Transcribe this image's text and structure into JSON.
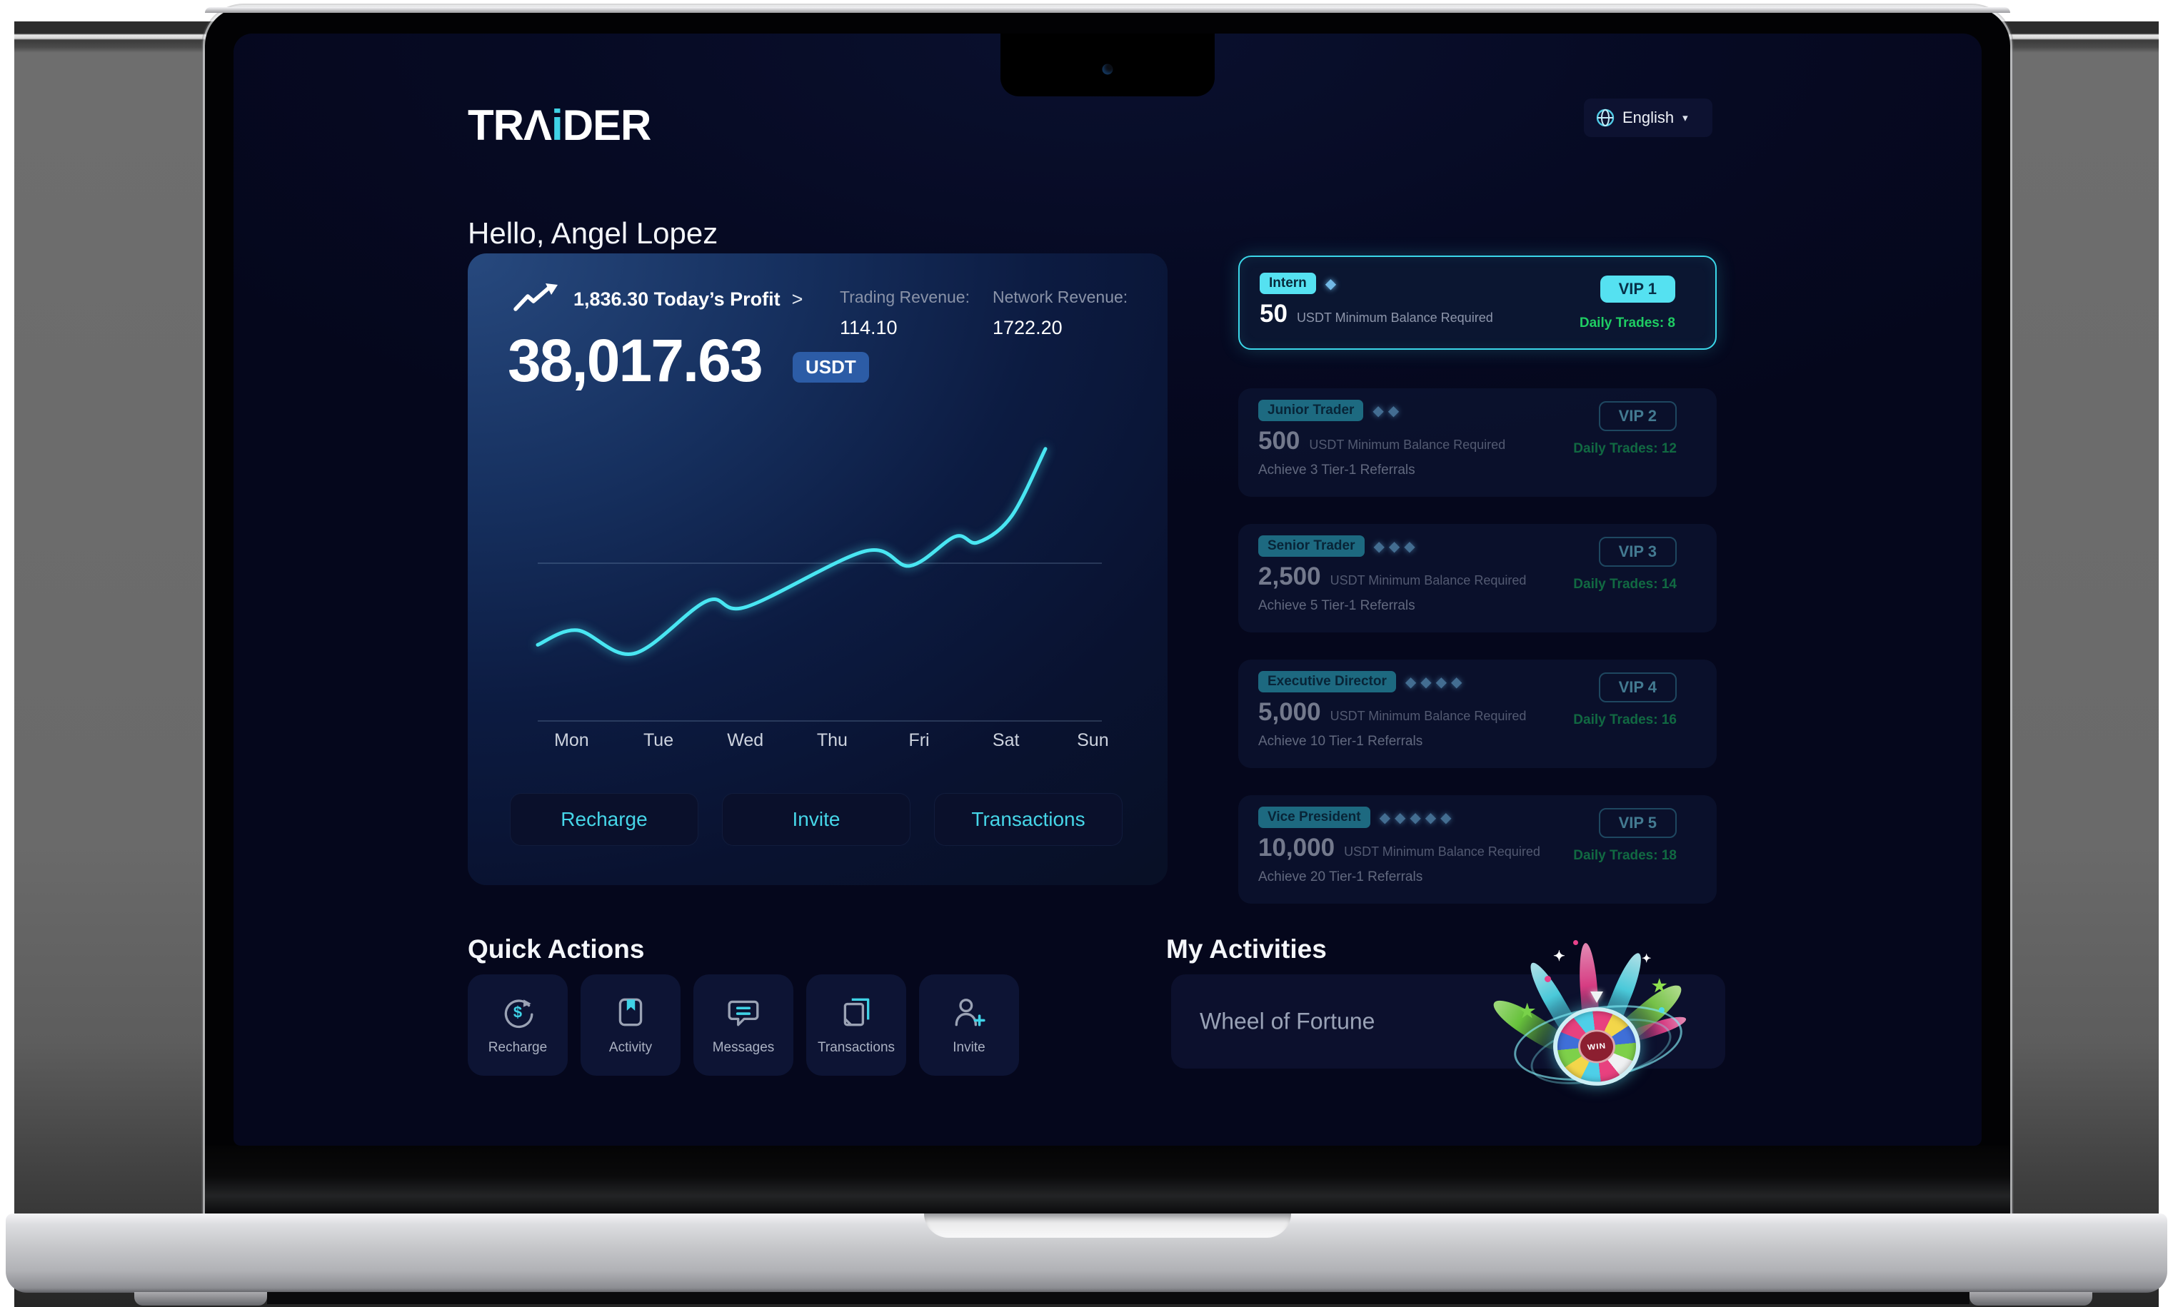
{
  "header": {
    "logo": {
      "t1": "TR",
      "a": "Λ",
      "i": "i",
      "t2": "DER"
    },
    "language": {
      "label": "English",
      "caret": "▾",
      "icon": "globe-icon"
    }
  },
  "greeting": "Hello, Angel Lopez",
  "profit_card": {
    "trend_icon": "trend-up-icon",
    "today_profit": "1,836.30 Today’s Profit",
    "chevron": ">",
    "trading_revenue_label": "Trading Revenue:",
    "trading_revenue_value": "114.10",
    "network_revenue_label": "Network Revenue:",
    "network_revenue_value": "1722.20",
    "balance": "38,017.63",
    "currency": "USDT",
    "buttons": [
      {
        "label": "Recharge"
      },
      {
        "label": "Invite"
      },
      {
        "label": "Transactions"
      }
    ]
  },
  "chart_data": {
    "type": "line",
    "categories": [
      "Mon",
      "Tue",
      "Wed",
      "Thu",
      "Fri",
      "Sat",
      "Sun"
    ],
    "points": [
      {
        "x": 0,
        "y": 26
      },
      {
        "x": 7,
        "y": 31
      },
      {
        "x": 17,
        "y": 23
      },
      {
        "x": 30,
        "y": 41
      },
      {
        "x": 37,
        "y": 39
      },
      {
        "x": 58,
        "y": 58
      },
      {
        "x": 66,
        "y": 53
      },
      {
        "x": 74,
        "y": 63
      },
      {
        "x": 78,
        "y": 61
      },
      {
        "x": 84,
        "y": 70
      },
      {
        "x": 90,
        "y": 93
      }
    ],
    "gridlines_y": [
      54,
      0
    ],
    "line_color": "#49e6f2",
    "label_start_pct": 6,
    "label_pitch_pct": 15.4,
    "ylim": [
      0,
      100
    ],
    "y_axis_labels": false,
    "legend": false
  },
  "vip": {
    "cards": [
      {
        "rank": "Intern",
        "gems": "◆",
        "vip_level": "VIP 1",
        "amount": "50",
        "amount_note": "USDT Minimum Balance Required",
        "daily_trades": "Daily Trades: 8",
        "referrals": "",
        "active": true
      },
      {
        "rank": "Junior Trader",
        "gems": "◆◆",
        "vip_level": "VIP 2",
        "amount": "500",
        "amount_note": "USDT Minimum Balance Required",
        "daily_trades": "Daily Trades: 12",
        "referrals": "Achieve 3 Tier-1 Referrals",
        "active": false
      },
      {
        "rank": "Senior Trader",
        "gems": "◆◆◆",
        "vip_level": "VIP 3",
        "amount": "2,500",
        "amount_note": "USDT Minimum Balance Required",
        "daily_trades": "Daily Trades: 14",
        "referrals": "Achieve 5 Tier-1 Referrals",
        "active": false
      },
      {
        "rank": "Executive Director",
        "gems": "◆◆◆◆",
        "vip_level": "VIP 4",
        "amount": "5,000",
        "amount_note": "USDT Minimum Balance Required",
        "daily_trades": "Daily Trades: 16",
        "referrals": "Achieve 10 Tier-1 Referrals",
        "active": false
      },
      {
        "rank": "Vice President",
        "gems": "◆◆◆◆◆",
        "vip_level": "VIP 5",
        "amount": "10,000",
        "amount_note": "USDT Minimum Balance Required",
        "daily_trades": "Daily Trades: 18",
        "referrals": "Achieve 20 Tier-1 Referrals",
        "active": false
      }
    ]
  },
  "quick_actions": {
    "title": "Quick Actions",
    "items": [
      {
        "label": "Recharge",
        "icon": "recharge-icon"
      },
      {
        "label": "Activity",
        "icon": "activity-icon"
      },
      {
        "label": "Messages",
        "icon": "messages-icon"
      },
      {
        "label": "Transactions",
        "icon": "transactions-icon"
      },
      {
        "label": "Invite",
        "icon": "invite-icon"
      }
    ]
  },
  "activities": {
    "title": "My Activities",
    "items": [
      {
        "label": "Wheel of Fortune",
        "icon": "wheel-of-fortune-icon",
        "center_text": "WIN"
      }
    ]
  },
  "colors": {
    "accent_cyan": "#45d9ea",
    "badge_blue": "#2c5ca6",
    "success_green": "#1fcd63",
    "card_glow_blue": "#27497e",
    "screen_bg": "#05081e"
  }
}
